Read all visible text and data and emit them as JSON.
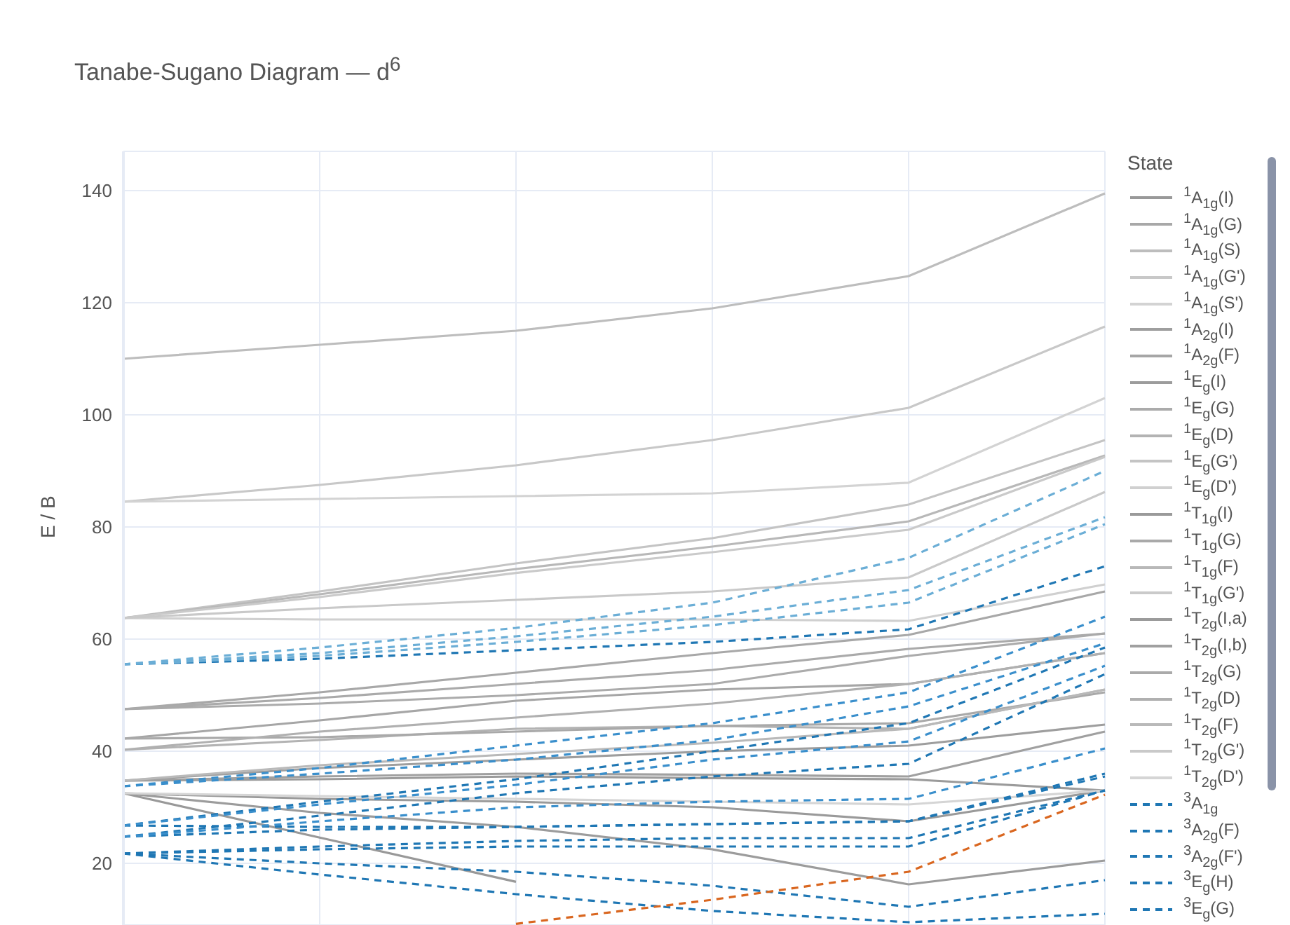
{
  "chart_data": {
    "type": "line",
    "title": "Tanabe-Sugano Diagram — d$^{6}$",
    "ylabel": "E / B",
    "legend_title": "State",
    "legend": "right",
    "grid": true,
    "marker": "none",
    "categories": [
      null,
      null,
      null,
      null,
      null,
      null
    ],
    "ylim": [
      9,
      147
    ],
    "yticks": [
      20,
      40,
      60,
      80,
      100,
      120,
      140
    ],
    "series": [
      {
        "name": "$^{1}$A$_{1g}$(I)",
        "color": "#999999",
        "line_style": "solid",
        "values": [
          32.5,
          24.6,
          16.7,
          null,
          null,
          null
        ]
      },
      {
        "name": "$^{1}$A$_{1g}$(G)",
        "color": "#a8a8a8",
        "line_style": "solid",
        "values": [
          47.5,
          50.5,
          54,
          57.5,
          60.75,
          68.5
        ]
      },
      {
        "name": "$^{1}$A$_{1g}$(S)",
        "color": "#bdbdbd",
        "line_style": "solid",
        "values": [
          110,
          112.5,
          115,
          119,
          124.75,
          139.5
        ]
      },
      {
        "name": "$^{1}$A$_{1g}$(G')",
        "color": "#c8c8c8",
        "line_style": "solid",
        "values": [
          84.5,
          87.5,
          91,
          95.5,
          101.25,
          115.75
        ]
      },
      {
        "name": "$^{1}$A$_{1g}$(S')",
        "color": "#d3d3d3",
        "line_style": "solid",
        "values": [
          84.5,
          85,
          85.5,
          86,
          87.9,
          103
        ]
      },
      {
        "name": "$^{1}$A$_{2g}$(I)",
        "color": "#9e9e9e",
        "line_style": "solid",
        "values": [
          34.75,
          37,
          38.5,
          40,
          41,
          44.75
        ]
      },
      {
        "name": "$^{1}$A$_{2g}$(F)",
        "color": "#a6a6a6",
        "line_style": "solid",
        "values": [
          42.25,
          45.5,
          49,
          51,
          52,
          57.5
        ]
      },
      {
        "name": "$^{1}$E$_{g}$(I)",
        "color": "#9c9c9c",
        "line_style": "solid",
        "values": [
          32.5,
          29,
          26.5,
          22.5,
          16.25,
          20.5
        ]
      },
      {
        "name": "$^{1}$E$_{g}$(G)",
        "color": "#ababab",
        "line_style": "solid",
        "values": [
          47.5,
          48.5,
          50,
          52,
          57,
          61
        ]
      },
      {
        "name": "$^{1}$E$_{g}$(D)",
        "color": "#b3b3b3",
        "line_style": "solid",
        "values": [
          40.25,
          42,
          44,
          44.5,
          44,
          51
        ]
      },
      {
        "name": "$^{1}$E$_{g}$(G')",
        "color": "#c4c4c4",
        "line_style": "solid",
        "values": [
          63.75,
          68.5,
          73.5,
          78,
          84,
          95.5
        ]
      },
      {
        "name": "$^{1}$E$_{g}$(D')",
        "color": "#d0d0d0",
        "line_style": "solid",
        "values": [
          63.75,
          63.5,
          63.5,
          63.5,
          63.25,
          69.75
        ]
      },
      {
        "name": "$^{1}$T$_{1g}$(I)",
        "color": "#9a9a9a",
        "line_style": "solid",
        "values": [
          32.5,
          31.5,
          31,
          30,
          27.5,
          33
        ]
      },
      {
        "name": "$^{1}$T$_{1g}$(G)",
        "color": "#a9a9a9",
        "line_style": "solid",
        "values": [
          42.25,
          42.5,
          43.5,
          44.5,
          45,
          50.5
        ]
      },
      {
        "name": "$^{1}$T$_{1g}$(F)",
        "color": "#b8b8b8",
        "line_style": "solid",
        "values": [
          63.75,
          68,
          72.5,
          76.5,
          81,
          92.75
        ]
      },
      {
        "name": "$^{1}$T$_{1g}$(G')",
        "color": "#cacaca",
        "line_style": "solid",
        "values": [
          63.75,
          67.5,
          71.8,
          75.5,
          79.5,
          92.5
        ]
      },
      {
        "name": "$^{1}$T$_{2g}$(I,a)",
        "color": "#9b9b9b",
        "line_style": "solid",
        "values": [
          34.75,
          35,
          35.5,
          35.2,
          35,
          33
        ]
      },
      {
        "name": "$^{1}$T$_{2g}$(I,b)",
        "color": "#a0a0a0",
        "line_style": "solid",
        "values": [
          34.75,
          35.5,
          36,
          35.8,
          35.5,
          43.5
        ]
      },
      {
        "name": "$^{1}$T$_{2g}$(G)",
        "color": "#aaaaaa",
        "line_style": "solid",
        "values": [
          47.5,
          49.5,
          52,
          54.5,
          58.25,
          61
        ]
      },
      {
        "name": "$^{1}$T$_{2g}$(D)",
        "color": "#b0b0b0",
        "line_style": "solid",
        "values": [
          40.25,
          43.5,
          46,
          48.5,
          52,
          57.5
        ]
      },
      {
        "name": "$^{1}$T$_{2g}$(F)",
        "color": "#b9b9b9",
        "line_style": "solid",
        "values": [
          34.75,
          37.5,
          39.5,
          41.5,
          44,
          51
        ]
      },
      {
        "name": "$^{1}$T$_{2g}$(G')",
        "color": "#c9c9c9",
        "line_style": "solid",
        "values": [
          63.75,
          65.5,
          67,
          68.5,
          71,
          86.25
        ]
      },
      {
        "name": "$^{1}$T$_{2g}$(D')",
        "color": "#d5d5d5",
        "line_style": "solid",
        "values": [
          32.5,
          32,
          31.5,
          31,
          30.5,
          33
        ]
      },
      {
        "name": "$^{3}$A$_{1g}$",
        "color": "#1f77b4",
        "line_style": "dashed",
        "values": [
          55.5,
          56.5,
          58,
          59.5,
          61.75,
          73
        ]
      },
      {
        "name": "$^{3}$A$_{2g}$(F)",
        "color": "#1f77b4",
        "line_style": "dashed",
        "values": [
          26.75,
          31,
          35,
          40,
          45,
          58.5
        ]
      },
      {
        "name": "$^{3}$A$_{2g}$(F')",
        "color": "#1f77b4",
        "line_style": "dashed",
        "values": [
          24.75,
          28.5,
          32.5,
          35.5,
          37.75,
          53.75
        ]
      },
      {
        "name": "$^{3}$E$_{g}$(H)",
        "color": "#1f77b4",
        "line_style": "dashed",
        "values": [
          24.75,
          26,
          26.5,
          27,
          27.5,
          36
        ]
      },
      {
        "name": "$^{3}$E$_{g}$(G)",
        "color": "#1f77b4",
        "line_style": "dashed",
        "values": [
          26.75,
          26.5,
          26.5,
          27,
          27.5,
          35.5
        ]
      },
      {
        "color": "#6baed6",
        "line_style": "dashed",
        "values": [
          55.5,
          58.5,
          62,
          66.5,
          74.5,
          90
        ]
      },
      {
        "color": "#6baed6",
        "line_style": "dashed",
        "values": [
          55.5,
          57.5,
          60.5,
          64,
          68.75,
          81.75
        ]
      },
      {
        "color": "#6baed6",
        "line_style": "dashed",
        "values": [
          55.5,
          57,
          59.5,
          62.5,
          66.5,
          80.5
        ]
      },
      {
        "color": "#3a8fcc",
        "line_style": "dashed",
        "values": [
          33.75,
          37,
          41,
          45,
          50.5,
          64
        ]
      },
      {
        "color": "#3a8fcc",
        "line_style": "dashed",
        "values": [
          33.75,
          36,
          38.5,
          42,
          48,
          59.25
        ]
      },
      {
        "color": "#3a8fcc",
        "line_style": "dashed",
        "values": [
          26.75,
          30.5,
          34,
          38.5,
          41.75,
          55.25
        ]
      },
      {
        "color": "#3a8fcc",
        "line_style": "dashed",
        "values": [
          24.75,
          27.5,
          30,
          31,
          31.5,
          40.5
        ]
      },
      {
        "color": "#1f77b4",
        "line_style": "dashed",
        "values": [
          21.75,
          23,
          24,
          24.5,
          24.5,
          33
        ]
      },
      {
        "color": "#1f77b4",
        "line_style": "dashed",
        "values": [
          21.75,
          22.5,
          23,
          23,
          23,
          33
        ]
      },
      {
        "color": "#1f77b4",
        "line_style": "dashed",
        "values": [
          21.75,
          20,
          18.5,
          16,
          12.25,
          17
        ]
      },
      {
        "color": "#1f77b4",
        "line_style": "dashed",
        "values": [
          21.75,
          18,
          14.5,
          11.5,
          9.5,
          11
        ]
      },
      {
        "color": "#d9661f",
        "line_style": "dashed",
        "values": [
          null,
          null,
          9.2,
          13.5,
          18.5,
          32.25
        ]
      }
    ]
  }
}
